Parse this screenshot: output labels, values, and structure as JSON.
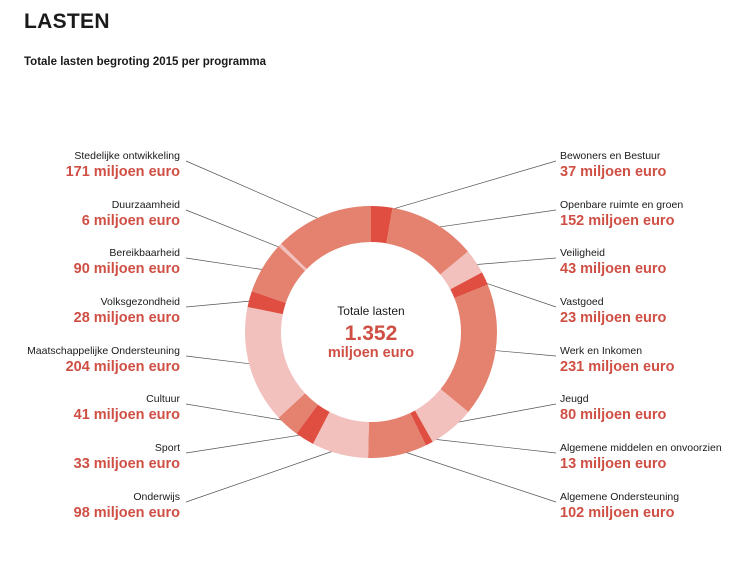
{
  "header": {
    "title": "LASTEN",
    "subtitle": "Totale lasten begroting 2015 per programma"
  },
  "chart_data": {
    "type": "pie",
    "donut": true,
    "unit": "miljoen euro",
    "center": {
      "label": "Totale lasten",
      "value": "1.352",
      "unit": "miljoen euro"
    },
    "slices": [
      {
        "name": "Bewoners en Bestuur",
        "value": 37,
        "display": "37 miljoen euro",
        "color": "#e04e42"
      },
      {
        "name": "Openbare ruimte en groen",
        "value": 152,
        "display": "152 miljoen euro",
        "color": "#e4826f"
      },
      {
        "name": "Veiligheid",
        "value": 43,
        "display": "43 miljoen euro",
        "color": "#f2c1bd"
      },
      {
        "name": "Vastgoed",
        "value": 23,
        "display": "23 miljoen euro",
        "color": "#e04e42"
      },
      {
        "name": "Werk en Inkomen",
        "value": 231,
        "display": "231 miljoen euro",
        "color": "#e4826f"
      },
      {
        "name": "Jeugd",
        "value": 80,
        "display": "80 miljoen euro",
        "color": "#f2c1bd"
      },
      {
        "name": "Algemene middelen en onvoorzien",
        "value": 13,
        "display": "13 miljoen euro",
        "color": "#e04e42"
      },
      {
        "name": "Algemene Ondersteuning",
        "value": 102,
        "display": "102 miljoen euro",
        "color": "#e4826f"
      },
      {
        "name": "Onderwijs",
        "value": 98,
        "display": "98 miljoen euro",
        "color": "#f2c1bd"
      },
      {
        "name": "Sport",
        "value": 33,
        "display": "33 miljoen euro",
        "color": "#e04e42"
      },
      {
        "name": "Cultuur",
        "value": 41,
        "display": "41 miljoen euro",
        "color": "#e4826f"
      },
      {
        "name": "Maatschappelijke Ondersteuning",
        "value": 204,
        "display": "204 miljoen euro",
        "color": "#f2c1bd"
      },
      {
        "name": "Volksgezondheid",
        "value": 28,
        "display": "28 miljoen euro",
        "color": "#e04e42"
      },
      {
        "name": "Bereikbaarheid",
        "value": 90,
        "display": "90 miljoen euro",
        "color": "#e4826f"
      },
      {
        "name": "Duurzaamheid",
        "value": 6,
        "display": "6 miljoen euro",
        "color": "#f2c1bd"
      },
      {
        "name": "Stedelijke ontwikkeling",
        "value": 171,
        "display": "171 miljoen euro",
        "color": "#e4826f"
      }
    ]
  }
}
